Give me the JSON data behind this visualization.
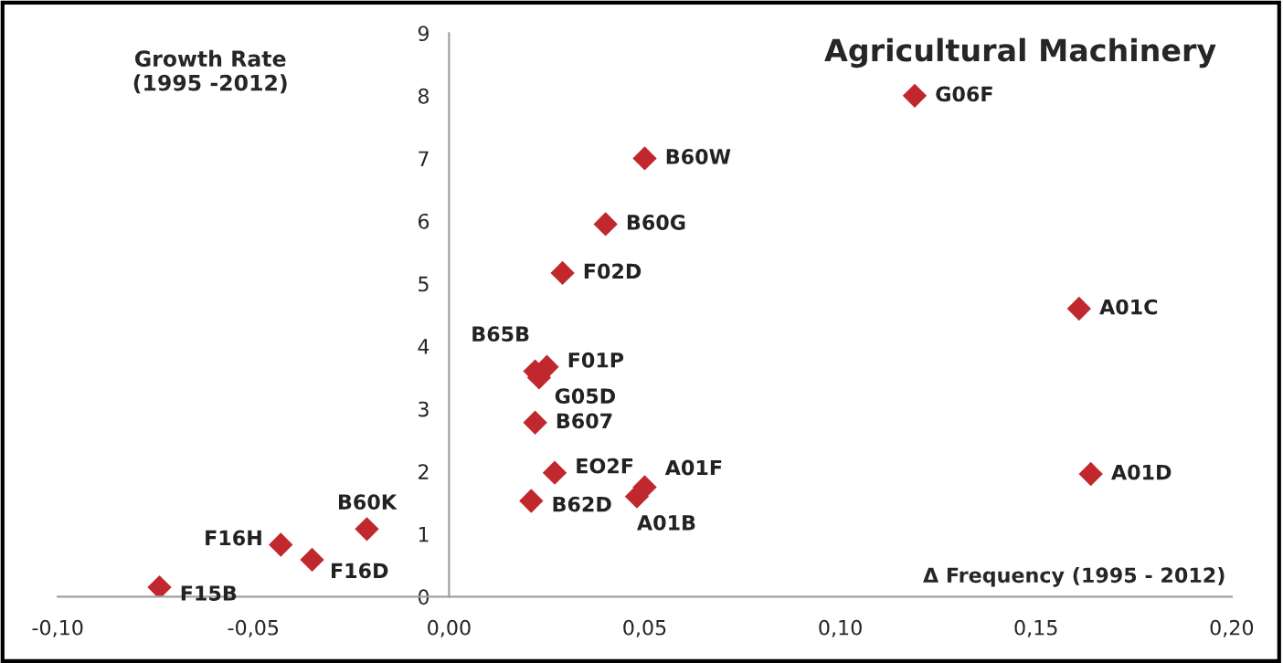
{
  "chart_data": {
    "type": "scatter",
    "title": "Agricultural Machinery",
    "xlabel": "Δ Frequency (1995 - 2012)",
    "ylabel": "Growth Rate\n(1995 -2012)",
    "series": [
      {
        "color": "#c0282d",
        "x": [
          0.119,
          0.05,
          0.04,
          0.029,
          0.022,
          0.025,
          0.023,
          0.022,
          0.027,
          0.021,
          0.05,
          0.048,
          0.161,
          0.164,
          -0.021,
          -0.043,
          -0.035,
          -0.074
        ],
        "values": [
          8.0,
          7.0,
          5.95,
          5.17,
          3.6,
          3.67,
          3.5,
          2.78,
          1.98,
          1.53,
          1.75,
          1.6,
          4.6,
          1.96,
          1.08,
          0.83,
          0.59,
          0.15
        ]
      }
    ],
    "annotations": [
      {
        "text": "G06F",
        "x": 0.119,
        "y": 8.0
      },
      {
        "text": "B60W",
        "x": 0.05,
        "y": 7.0
      },
      {
        "text": "B60G",
        "x": 0.04,
        "y": 5.95
      },
      {
        "text": "F02D",
        "x": 0.029,
        "y": 5.17
      },
      {
        "text": "B65B",
        "x": 0.022,
        "y": 3.6
      },
      {
        "text": "F01P",
        "x": 0.025,
        "y": 3.67
      },
      {
        "text": "G05D",
        "x": 0.023,
        "y": 3.5
      },
      {
        "text": "B607",
        "x": 0.022,
        "y": 2.78
      },
      {
        "text": "EO2F",
        "x": 0.027,
        "y": 1.98
      },
      {
        "text": "B62D",
        "x": 0.021,
        "y": 1.53
      },
      {
        "text": "A01F",
        "x": 0.05,
        "y": 1.75
      },
      {
        "text": "A01B",
        "x": 0.048,
        "y": 1.6
      },
      {
        "text": "A01C",
        "x": 0.161,
        "y": 4.6
      },
      {
        "text": "A01D",
        "x": 0.164,
        "y": 1.96
      },
      {
        "text": "B60K",
        "x": -0.021,
        "y": 1.08
      },
      {
        "text": "F16H",
        "x": -0.043,
        "y": 0.83
      },
      {
        "text": "F16D",
        "x": -0.035,
        "y": 0.59
      },
      {
        "text": "F15B",
        "x": -0.074,
        "y": 0.15
      }
    ],
    "marker": "diamond",
    "grid": false,
    "legend": false,
    "xlim": [
      -0.1,
      0.2
    ],
    "xticks": [
      {
        "value": -0.1,
        "label": "-0,10"
      },
      {
        "value": -0.05,
        "label": "-0,05"
      },
      {
        "value": 0,
        "label": "0,00"
      },
      {
        "value": 0.05,
        "label": "0,05"
      },
      {
        "value": 0.1,
        "label": "0,10"
      },
      {
        "value": 0.15,
        "label": "0,15"
      },
      {
        "value": 0.2,
        "label": "0,20"
      }
    ],
    "ylim": [
      0,
      9
    ],
    "yticks": [
      0,
      1,
      2,
      3,
      4,
      5,
      6,
      7,
      8,
      9
    ]
  }
}
